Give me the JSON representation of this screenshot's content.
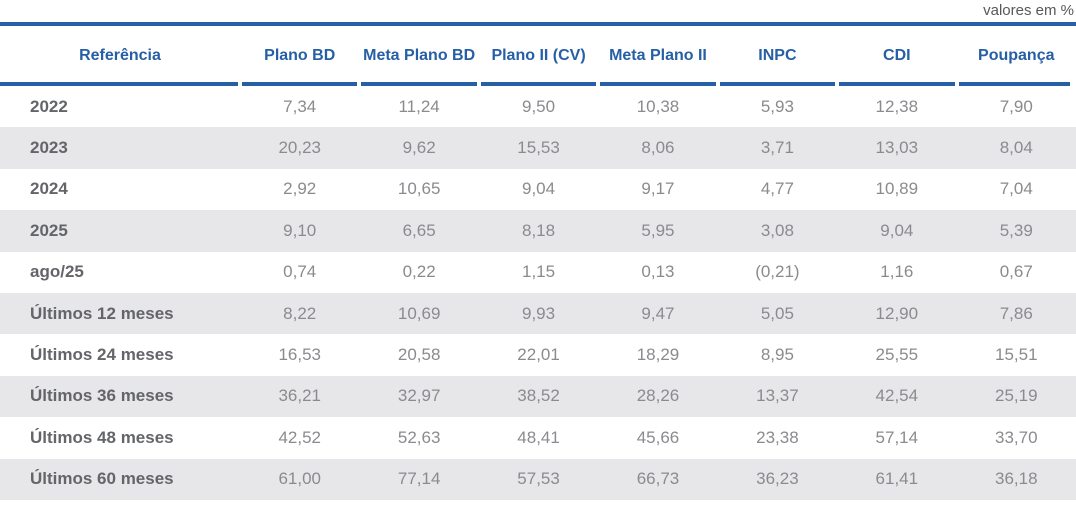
{
  "note": "valores em %",
  "colors": {
    "accent_blue": "#265fa6",
    "stripe_gray": "#e7e7e9",
    "label_gray": "#636569",
    "value_gray": "#8a8b8f",
    "note_gray": "#57585a"
  },
  "chart_data": {
    "type": "table",
    "title": "",
    "unit_note": "valores em %",
    "columns": [
      "Referência",
      "Plano BD",
      "Meta Plano BD",
      "Plano II (CV)",
      "Meta Plano II",
      "INPC",
      "CDI",
      "Poupança"
    ],
    "rows": [
      {
        "label": "2022",
        "values": [
          "7,34",
          "11,24",
          "9,50",
          "10,38",
          "5,93",
          "12,38",
          "7,90"
        ]
      },
      {
        "label": "2023",
        "values": [
          "20,23",
          "9,62",
          "15,53",
          "8,06",
          "3,71",
          "13,03",
          "8,04"
        ]
      },
      {
        "label": "2024",
        "values": [
          "2,92",
          "10,65",
          "9,04",
          "9,17",
          "4,77",
          "10,89",
          "7,04"
        ]
      },
      {
        "label": "2025",
        "values": [
          "9,10",
          "6,65",
          "8,18",
          "5,95",
          "3,08",
          "9,04",
          "5,39"
        ]
      },
      {
        "label": "ago/25",
        "values": [
          "0,74",
          "0,22",
          "1,15",
          "0,13",
          "(0,21)",
          "1,16",
          "0,67"
        ]
      },
      {
        "label": "Últimos 12 meses",
        "values": [
          "8,22",
          "10,69",
          "9,93",
          "9,47",
          "5,05",
          "12,90",
          "7,86"
        ]
      },
      {
        "label": "Últimos 24 meses",
        "values": [
          "16,53",
          "20,58",
          "22,01",
          "18,29",
          "8,95",
          "25,55",
          "15,51"
        ]
      },
      {
        "label": "Últimos 36 meses",
        "values": [
          "36,21",
          "32,97",
          "38,52",
          "28,26",
          "13,37",
          "42,54",
          "25,19"
        ]
      },
      {
        "label": "Últimos 48 meses",
        "values": [
          "42,52",
          "52,63",
          "48,41",
          "45,66",
          "23,38",
          "57,14",
          "33,70"
        ]
      },
      {
        "label": "Últimos 60 meses",
        "values": [
          "61,00",
          "77,14",
          "57,53",
          "66,73",
          "36,23",
          "61,41",
          "36,18"
        ]
      }
    ]
  }
}
